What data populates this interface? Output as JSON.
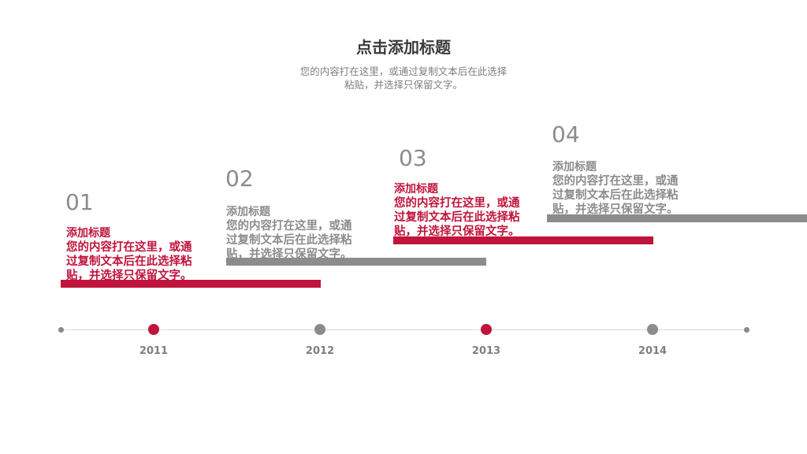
{
  "header": {
    "title": "点击添加标题",
    "subtitle": [
      "您的内容打在这里，或通过复制文本后在此选择",
      "粘贴，并选择只保留文字。"
    ]
  },
  "items": [
    {
      "number": "01",
      "heading": "添加标题",
      "text": "您的内容打在这里，或通过复制文本后在此选择粘贴，并选择只保留文字。"
    },
    {
      "number": "02",
      "heading": "添加标题",
      "text": "您的内容打在这里，或通过复制文本后在此选择粘贴，并选择只保留文字。"
    },
    {
      "number": "03",
      "heading": "添加标题",
      "text": "您的内容打在这里，或通过复制文本后在此选择粘贴，并选择只保留文字。"
    },
    {
      "number": "04",
      "heading": "添加标题",
      "text": "您的内容打在这里，或通过复制文本后在此选择粘贴，并选择只保留文字。"
    }
  ],
  "timeline": {
    "years": [
      "2011",
      "2012",
      "2013",
      "2014"
    ]
  }
}
